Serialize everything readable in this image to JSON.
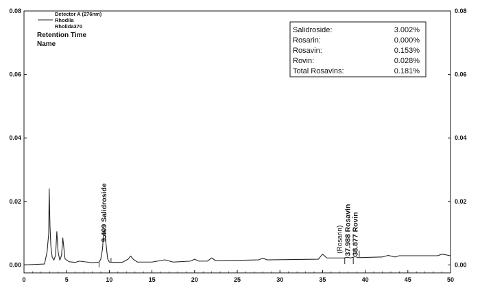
{
  "header": {
    "detector": "Detector A (276nm)",
    "legend_line": "Rhodila",
    "sample": "Rholida370",
    "retention_time": "Retention Time",
    "name": "Name"
  },
  "results_box": {
    "rows": [
      {
        "name": "Salidroside:",
        "value": "3.002%"
      },
      {
        "name": "Rosarin:",
        "value": "0.000%"
      },
      {
        "name": "Rosavin:",
        "value": "0.153%"
      },
      {
        "name": "Rovin:",
        "value": "0.028%"
      },
      {
        "name": "Total Rosavins:",
        "value": "0.181%"
      }
    ]
  },
  "chart_data": {
    "type": "line",
    "title": "",
    "xlabel": "",
    "ylabel": "",
    "xlim": [
      0,
      50
    ],
    "ylim": [
      -0.0025,
      0.08
    ],
    "x_ticks": [
      "0",
      "5",
      "10",
      "15",
      "20",
      "25",
      "30",
      "35",
      "40",
      "45",
      "50"
    ],
    "y_ticks": [
      "0.00",
      "0.02",
      "0.04",
      "0.06",
      "0.08"
    ],
    "y_tick_values": [
      0.0,
      0.02,
      0.04,
      0.06,
      0.08
    ],
    "series": [
      {
        "name": "Rhodila",
        "x": [
          0,
          2.4,
          2.7,
          2.9,
          2.95,
          3.0,
          3.05,
          3.15,
          3.3,
          3.5,
          3.7,
          3.85,
          4.0,
          4.2,
          4.4,
          4.55,
          4.65,
          4.8,
          5.0,
          5.3,
          6.0,
          6.5,
          8.0,
          8.8,
          9.0,
          9.2,
          9.35,
          9.45,
          9.6,
          9.8,
          10.0,
          10.5,
          11.5,
          12.2,
          12.5,
          12.8,
          13.3,
          15.0,
          16.5,
          17.5,
          19.5,
          20.0,
          20.5,
          21.5,
          22.0,
          22.5,
          27.5,
          28.0,
          28.5,
          34.5,
          35.0,
          35.5,
          37.5,
          37.9,
          38.3,
          38.8,
          39.2,
          42.0,
          42.7,
          43.5,
          44.0,
          48.5,
          49.0,
          50.0
        ],
        "y": [
          0.0,
          0.0003,
          0.004,
          0.01,
          0.024,
          0.018,
          0.012,
          0.006,
          0.0025,
          0.0015,
          0.003,
          0.0105,
          0.004,
          0.0015,
          0.003,
          0.0085,
          0.006,
          0.002,
          0.0015,
          0.001,
          0.0008,
          0.0012,
          0.0007,
          0.0009,
          0.0018,
          0.005,
          0.0105,
          0.011,
          0.007,
          0.002,
          0.0009,
          0.0008,
          0.0008,
          0.0018,
          0.0028,
          0.0018,
          0.0009,
          0.0009,
          0.0016,
          0.0009,
          0.0012,
          0.0018,
          0.0012,
          0.0012,
          0.0022,
          0.0013,
          0.0016,
          0.0021,
          0.0016,
          0.0018,
          0.0034,
          0.0022,
          0.0022,
          0.0024,
          0.0022,
          0.0026,
          0.0023,
          0.0025,
          0.003,
          0.0025,
          0.0029,
          0.0029,
          0.0034,
          0.0029
        ]
      }
    ],
    "peaks": [
      {
        "label": "9.409  Salidroside",
        "rt": 9.409
      },
      {
        "label": "(Rosarin)",
        "rt": 37.3
      },
      {
        "label": "37.988  Rosavin",
        "rt": 37.988
      },
      {
        "label": "38.877  Rovin",
        "rt": 38.877
      }
    ],
    "grid": false,
    "legend": "top-left"
  }
}
